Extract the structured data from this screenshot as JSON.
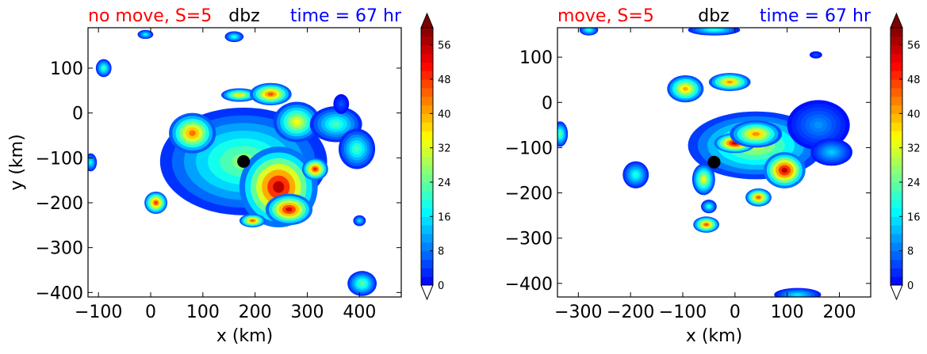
{
  "chart_data": [
    {
      "type": "heatmap",
      "title_left": "no move, S=5",
      "title_center": "dbz",
      "title_right": "time = 67 hr",
      "title_left_color": "#ff0000",
      "title_right_color": "#0000ff",
      "xlabel": "x (km)",
      "ylabel": "y (km)",
      "xlim": [
        -120,
        480
      ],
      "ylim": [
        -410,
        190
      ],
      "x_ticks": [
        -100,
        0,
        100,
        200,
        300,
        400
      ],
      "x_tick_labels": [
        "−100",
        "0",
        "100",
        "200",
        "300",
        "400"
      ],
      "y_ticks": [
        100,
        0,
        -100,
        -200,
        -300,
        -400
      ],
      "y_tick_labels": [
        "100",
        "0",
        "−100",
        "−200",
        "−300",
        "−400"
      ],
      "center_marker": {
        "x": 178,
        "y": -108
      },
      "colorbar": {
        "min": 0,
        "max": 60,
        "step": 2,
        "ticks": [
          0,
          8,
          16,
          24,
          32,
          40,
          48,
          56
        ],
        "tick_labels": [
          "0",
          "8",
          "16",
          "24",
          "32",
          "40",
          "48",
          "56"
        ],
        "extend": "both"
      },
      "cells": [
        {
          "x": 178,
          "y": -108,
          "rx": 160,
          "ry": 120,
          "peak": 26
        },
        {
          "x": 245,
          "y": -165,
          "rx": 75,
          "ry": 90,
          "peak": 56
        },
        {
          "x": 265,
          "y": -215,
          "rx": 45,
          "ry": 35,
          "peak": 54
        },
        {
          "x": 315,
          "y": -125,
          "rx": 25,
          "ry": 25,
          "peak": 50
        },
        {
          "x": 80,
          "y": -45,
          "rx": 45,
          "ry": 45,
          "peak": 44
        },
        {
          "x": 170,
          "y": 40,
          "rx": 35,
          "ry": 15,
          "peak": 36
        },
        {
          "x": 230,
          "y": 42,
          "rx": 40,
          "ry": 25,
          "peak": 46
        },
        {
          "x": 280,
          "y": -20,
          "rx": 45,
          "ry": 45,
          "peak": 34
        },
        {
          "x": 355,
          "y": -25,
          "rx": 50,
          "ry": 40,
          "peak": 22
        },
        {
          "x": 395,
          "y": -80,
          "rx": 35,
          "ry": 45,
          "peak": 22
        },
        {
          "x": 195,
          "y": -240,
          "rx": 25,
          "ry": 15,
          "peak": 46
        },
        {
          "x": -90,
          "y": 100,
          "rx": 15,
          "ry": 20,
          "peak": 22
        },
        {
          "x": 10,
          "y": -200,
          "rx": 22,
          "ry": 25,
          "peak": 48
        },
        {
          "x": -115,
          "y": -110,
          "rx": 12,
          "ry": 20,
          "peak": 18
        },
        {
          "x": -10,
          "y": 175,
          "rx": 15,
          "ry": 10,
          "peak": 18
        },
        {
          "x": 160,
          "y": 170,
          "rx": 18,
          "ry": 12,
          "peak": 20
        },
        {
          "x": 405,
          "y": -380,
          "rx": 28,
          "ry": 28,
          "peak": 24
        },
        {
          "x": 400,
          "y": -240,
          "rx": 12,
          "ry": 12,
          "peak": 16
        },
        {
          "x": 365,
          "y": 20,
          "rx": 15,
          "ry": 22,
          "peak": 6
        }
      ]
    },
    {
      "type": "heatmap",
      "title_left": "move, S=5",
      "title_center": "dbz",
      "title_right": "time = 67 hr",
      "title_left_color": "#ff0000",
      "title_right_color": "#0000ff",
      "xlabel": "x (km)",
      "ylabel": "",
      "xlim": [
        -340,
        260
      ],
      "ylim": [
        -430,
        165
      ],
      "x_ticks": [
        -300,
        -200,
        -100,
        0,
        100,
        200
      ],
      "x_tick_labels": [
        "−300",
        "−200",
        "−100",
        "0",
        "100",
        "200"
      ],
      "y_ticks": [
        100,
        0,
        -100,
        -200,
        -300,
        -400
      ],
      "y_tick_labels": [
        "100",
        "0",
        "−100",
        "−200",
        "−300",
        "−400"
      ],
      "center_marker": {
        "x": -40,
        "y": -132
      },
      "colorbar": {
        "min": 0,
        "max": 60,
        "step": 2,
        "ticks": [
          0,
          8,
          16,
          24,
          32,
          40,
          48,
          56
        ],
        "tick_labels": [
          "0",
          "8",
          "16",
          "24",
          "32",
          "40",
          "48",
          "56"
        ],
        "extend": "both"
      },
      "cells": [
        {
          "x": 40,
          "y": -95,
          "rx": 130,
          "ry": 75,
          "peak": 30
        },
        {
          "x": 0,
          "y": -90,
          "rx": 40,
          "ry": 22,
          "peak": 56
        },
        {
          "x": 95,
          "y": -150,
          "rx": 40,
          "ry": 40,
          "peak": 56
        },
        {
          "x": 40,
          "y": -70,
          "rx": 50,
          "ry": 30,
          "peak": 42
        },
        {
          "x": 160,
          "y": -50,
          "rx": 60,
          "ry": 55,
          "peak": 10
        },
        {
          "x": 185,
          "y": -110,
          "rx": 40,
          "ry": 30,
          "peak": 14
        },
        {
          "x": -95,
          "y": 30,
          "rx": 35,
          "ry": 30,
          "peak": 40
        },
        {
          "x": -10,
          "y": 45,
          "rx": 40,
          "ry": 20,
          "peak": 42
        },
        {
          "x": -60,
          "y": -170,
          "rx": 22,
          "ry": 35,
          "peak": 34
        },
        {
          "x": -55,
          "y": -270,
          "rx": 25,
          "ry": 18,
          "peak": 46
        },
        {
          "x": 45,
          "y": -210,
          "rx": 25,
          "ry": 20,
          "peak": 46
        },
        {
          "x": -190,
          "y": -160,
          "rx": 25,
          "ry": 30,
          "peak": 20
        },
        {
          "x": -335,
          "y": -70,
          "rx": 15,
          "ry": 28,
          "peak": 24
        },
        {
          "x": -280,
          "y": 160,
          "rx": 18,
          "ry": 12,
          "peak": 20
        },
        {
          "x": -40,
          "y": 160,
          "rx": 50,
          "ry": 12,
          "peak": 20
        },
        {
          "x": -50,
          "y": -230,
          "rx": 15,
          "ry": 15,
          "peak": 20
        },
        {
          "x": 120,
          "y": -425,
          "rx": 45,
          "ry": 15,
          "peak": 16
        },
        {
          "x": 155,
          "y": 105,
          "rx": 12,
          "ry": 8,
          "peak": 6
        }
      ]
    }
  ]
}
